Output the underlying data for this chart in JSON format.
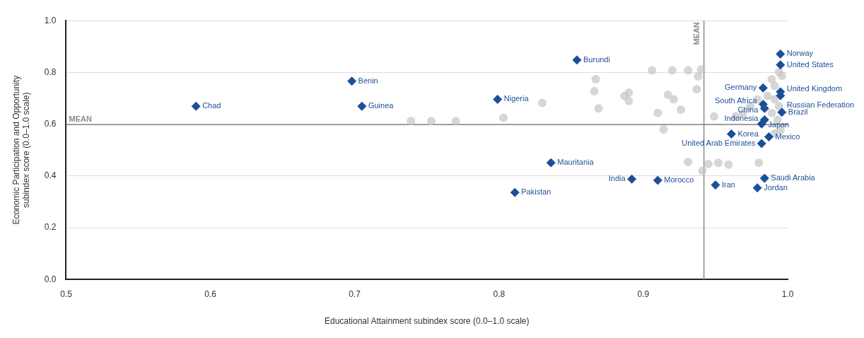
{
  "chart_data": {
    "type": "scatter",
    "xlabel": "Educational Attainment subindex score (0.0–1.0 scale)",
    "ylabel": "Economic Participation and Opportunity\nsubindex score (0.0–1.0 scale)",
    "xlim": [
      0.5,
      1.0
    ],
    "xticks": [
      0.5,
      0.6,
      0.7,
      0.8,
      0.9,
      {
        "value": 1,
        "label": "1.0"
      }
    ],
    "ylim": [
      0,
      1.0
    ],
    "yticks": [
      {
        "value": 0,
        "label": "0.0"
      },
      0.2,
      0.4,
      0.6,
      0.8,
      {
        "value": 1,
        "label": "1.0"
      }
    ],
    "grid": "y",
    "legend": false,
    "series": [
      {
        "color": "#c4c4c4",
        "marker": "circle",
        "x": [
          0.739,
          0.753,
          0.77,
          0.803,
          0.83,
          0.867,
          0.866,
          0.869,
          0.887,
          0.89,
          0.906,
          0.92,
          0.931,
          0.94,
          0.938,
          0.937,
          0.89,
          0.917,
          0.921,
          0.91,
          0.926,
          0.914,
          0.949,
          0.931,
          0.945,
          0.952,
          0.959,
          0.941,
          0.98,
          0.989,
          0.991,
          0.994,
          0.996,
          0.991,
          0.994,
          0.989,
          0.993,
          0.986,
          0.974,
          0.969,
          0.964,
          0.979,
          0.995,
          0.991
        ],
        "values": [
          0.612,
          0.612,
          0.612,
          0.625,
          0.682,
          0.774,
          0.727,
          0.661,
          0.709,
          0.722,
          0.808,
          0.808,
          0.808,
          0.811,
          0.785,
          0.735,
          0.69,
          0.714,
          0.696,
          0.643,
          0.656,
          0.58,
          0.63,
          0.454,
          0.446,
          0.451,
          0.444,
          0.42,
          0.451,
          0.774,
          0.748,
          0.801,
          0.787,
          0.696,
          0.669,
          0.643,
          0.617,
          0.709,
          0.669,
          0.643,
          0.63,
          0.696,
          0.577,
          0.564
        ]
      },
      {
        "color": "#1d4f97",
        "marker": "diamond",
        "x": [
          0.59,
          0.698,
          0.705,
          0.799,
          0.854,
          0.836,
          0.811,
          0.892,
          0.91,
          0.95,
          0.979,
          0.984,
          0.995,
          0.995,
          0.983,
          0.995,
          0.995,
          0.983,
          0.984,
          0.996,
          0.984,
          0.982,
          0.961,
          0.987,
          0.982
        ],
        "values": [
          0.669,
          0.766,
          0.669,
          0.696,
          0.848,
          0.451,
          0.336,
          0.388,
          0.383,
          0.365,
          0.354,
          0.391,
          0.871,
          0.829,
          0.74,
          0.725,
          0.71,
          0.677,
          0.661,
          0.646,
          0.617,
          0.601,
          0.562,
          0.551,
          0.525
        ]
      }
    ],
    "annotations": [
      {
        "text": "Chad",
        "x": 0.59,
        "y": 0.669
      },
      {
        "text": "Benin",
        "x": 0.698,
        "y": 0.766
      },
      {
        "text": "Guinea",
        "x": 0.705,
        "y": 0.669
      },
      {
        "text": "Nigeria",
        "x": 0.799,
        "y": 0.696
      },
      {
        "text": "Burundi",
        "x": 0.854,
        "y": 0.848
      },
      {
        "text": "Mauritania",
        "x": 0.836,
        "y": 0.451
      },
      {
        "text": "Pakistan",
        "x": 0.811,
        "y": 0.336
      },
      {
        "text": "India",
        "x": 0.892,
        "y": 0.388
      },
      {
        "text": "Morocco",
        "x": 0.91,
        "y": 0.383
      },
      {
        "text": "Iran",
        "x": 0.95,
        "y": 0.365
      },
      {
        "text": "Jordan",
        "x": 0.979,
        "y": 0.354
      },
      {
        "text": "Saudi Arabia",
        "x": 0.984,
        "y": 0.391
      },
      {
        "text": "Norway",
        "x": 0.995,
        "y": 0.871
      },
      {
        "text": "United States",
        "x": 0.995,
        "y": 0.829
      },
      {
        "text": "Germany",
        "x": 0.983,
        "y": 0.74
      },
      {
        "text": "United Kingdom",
        "x": 0.995,
        "y": 0.725
      },
      {
        "text": "Russian Federation",
        "x": 0.995,
        "y": 0.71
      },
      {
        "text": "South Africa",
        "x": 0.983,
        "y": 0.677
      },
      {
        "text": "China",
        "x": 0.984,
        "y": 0.661
      },
      {
        "text": "Brazil",
        "x": 0.996,
        "y": 0.646
      },
      {
        "text": "Indonesia",
        "x": 0.984,
        "y": 0.617
      },
      {
        "text": "Japan",
        "x": 0.982,
        "y": 0.601
      },
      {
        "text": "Korea",
        "x": 0.961,
        "y": 0.562
      },
      {
        "text": "Mexico",
        "x": 0.987,
        "y": 0.551
      },
      {
        "text": "United Arab Emirates",
        "x": 0.982,
        "y": 0.525
      }
    ],
    "ref_lines": [
      {
        "axis": "x",
        "value": 0.942,
        "label": "MEAN",
        "color": "#8a8a8a"
      },
      {
        "axis": "y",
        "value": 0.598,
        "label": "MEAN",
        "color": "#8a8a8a"
      }
    ]
  }
}
